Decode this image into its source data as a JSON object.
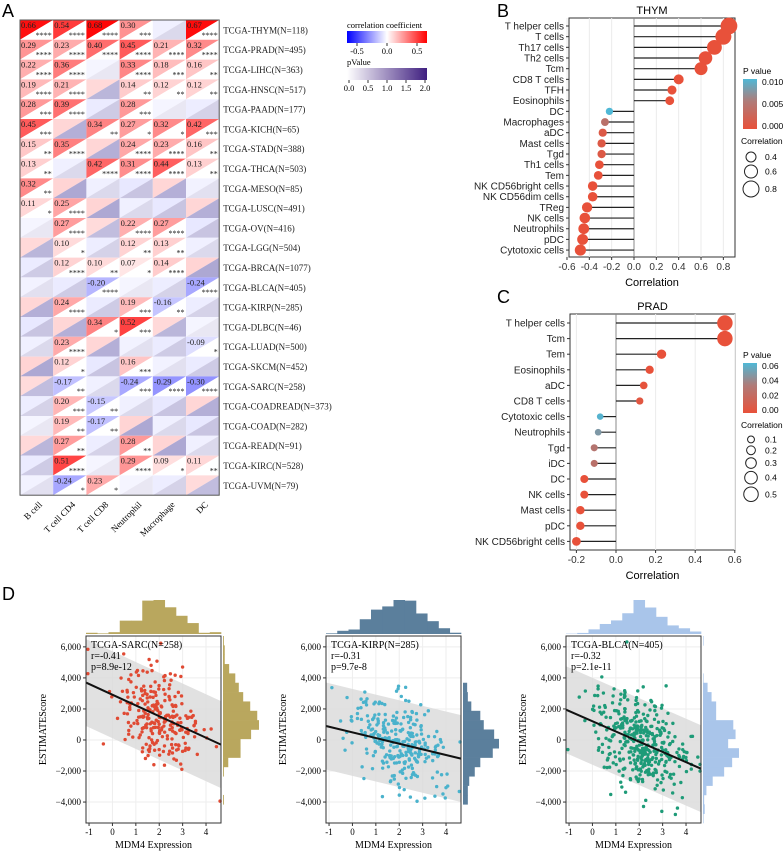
{
  "panels": {
    "a": "A",
    "b": "B",
    "c": "C",
    "d": "D"
  },
  "chart_data": [
    {
      "type": "heatmap",
      "columns": [
        "B cell",
        "T cell CD4",
        "T cell CD8",
        "Neutrophil",
        "Macrophage",
        "DC"
      ],
      "legend": {
        "corr_title": "correlation coefficient",
        "corr_ticks": [
          "-0.5",
          "0.0",
          "0.5"
        ],
        "p_title": "pValue",
        "p_ticks": [
          "0.0",
          "0.5",
          "1.0",
          "1.5",
          "2.0"
        ],
        "corr_low": "#0000ff",
        "corr_high": "#ff0000",
        "p_color": "#3f1f80"
      },
      "rows": [
        {
          "label": "TCGA-THYM(N=118)",
          "r": [
            0.66,
            0.54,
            0.68,
            0.3,
            null,
            0.67
          ],
          "sig": [
            "****",
            "****",
            "****",
            "***",
            "",
            "****"
          ]
        },
        {
          "label": "TCGA-PRAD(N=495)",
          "r": [
            0.29,
            0.23,
            0.4,
            0.45,
            0.21,
            0.32
          ],
          "sig": [
            "****",
            "****",
            "****",
            "****",
            "****",
            "****"
          ]
        },
        {
          "label": "TCGA-LIHC(N=363)",
          "r": [
            0.22,
            0.36,
            null,
            0.33,
            0.18,
            0.16
          ],
          "sig": [
            "****",
            "****",
            "",
            "****",
            "***",
            "**"
          ]
        },
        {
          "label": "TCGA-HNSC(N=517)",
          "r": [
            0.19,
            0.21,
            null,
            0.14,
            0.12,
            0.12
          ],
          "sig": [
            "****",
            "****",
            "",
            "**",
            "**",
            "**"
          ]
        },
        {
          "label": "TCGA-PAAD(N=177)",
          "r": [
            0.28,
            0.39,
            null,
            0.28,
            null,
            null
          ],
          "sig": [
            "***",
            "****",
            "",
            "***",
            "",
            ""
          ]
        },
        {
          "label": "TCGA-KICH(N=65)",
          "r": [
            0.45,
            null,
            0.34,
            0.27,
            0.32,
            0.42
          ],
          "sig": [
            "***",
            "",
            "**",
            "*",
            "*",
            "***"
          ]
        },
        {
          "label": "TCGA-STAD(N=388)",
          "r": [
            0.15,
            0.35,
            null,
            0.24,
            0.23,
            0.16
          ],
          "sig": [
            "**",
            "****",
            "",
            "****",
            "****",
            "**"
          ]
        },
        {
          "label": "TCGA-THCA(N=503)",
          "r": [
            0.13,
            null,
            0.42,
            0.31,
            0.44,
            0.13
          ],
          "sig": [
            "**",
            "",
            "****",
            "****",
            "****",
            "**"
          ]
        },
        {
          "label": "TCGA-MESO(N=85)",
          "r": [
            0.32,
            null,
            null,
            null,
            null,
            null
          ],
          "sig": [
            "**",
            "",
            "",
            "",
            "",
            ""
          ]
        },
        {
          "label": "TCGA-LUSC(N=491)",
          "r": [
            0.11,
            0.25,
            null,
            null,
            null,
            null
          ],
          "sig": [
            "*",
            "****",
            "",
            "",
            "",
            ""
          ]
        },
        {
          "label": "TCGA-OV(N=416)",
          "r": [
            null,
            0.27,
            null,
            0.22,
            0.27,
            null
          ],
          "sig": [
            "",
            "****",
            "",
            "****",
            "****",
            ""
          ]
        },
        {
          "label": "TCGA-LGG(N=504)",
          "r": [
            null,
            0.1,
            null,
            0.12,
            0.13,
            null
          ],
          "sig": [
            "",
            "*",
            "",
            "**",
            "**",
            ""
          ]
        },
        {
          "label": "TCGA-BRCA(N=1077)",
          "r": [
            null,
            0.12,
            0.1,
            0.07,
            0.14,
            null
          ],
          "sig": [
            "",
            "****",
            "**",
            "*",
            "****",
            ""
          ]
        },
        {
          "label": "TCGA-BLCA(N=405)",
          "r": [
            null,
            null,
            -0.2,
            null,
            null,
            -0.24
          ],
          "sig": [
            "",
            "",
            "****",
            "",
            "",
            "****"
          ]
        },
        {
          "label": "TCGA-KIRP(N=285)",
          "r": [
            null,
            0.24,
            null,
            0.19,
            -0.16,
            null
          ],
          "sig": [
            "",
            "****",
            "",
            "***",
            "**",
            ""
          ]
        },
        {
          "label": "TCGA-DLBC(N=46)",
          "r": [
            null,
            null,
            0.34,
            0.52,
            null,
            null
          ],
          "sig": [
            "",
            "",
            "*",
            "***",
            "",
            ""
          ]
        },
        {
          "label": "TCGA-LUAD(N=500)",
          "r": [
            null,
            0.23,
            null,
            null,
            null,
            -0.09
          ],
          "sig": [
            "",
            "****",
            "",
            "",
            "",
            "*"
          ]
        },
        {
          "label": "TCGA-SKCM(N=452)",
          "r": [
            null,
            0.12,
            null,
            0.16,
            null,
            null
          ],
          "sig": [
            "",
            "*",
            "",
            "***",
            "",
            ""
          ]
        },
        {
          "label": "TCGA-SARC(N=258)",
          "r": [
            null,
            -0.17,
            null,
            -0.24,
            -0.29,
            -0.3
          ],
          "sig": [
            "",
            "**",
            "",
            "***",
            "****",
            "****"
          ]
        },
        {
          "label": "TCGA-COADREAD(N=373)",
          "r": [
            null,
            0.2,
            -0.15,
            null,
            null,
            null
          ],
          "sig": [
            "",
            "***",
            "**",
            "",
            "",
            ""
          ]
        },
        {
          "label": "TCGA-COAD(N=282)",
          "r": [
            null,
            0.19,
            -0.17,
            null,
            null,
            null
          ],
          "sig": [
            "",
            "**",
            "**",
            "",
            "",
            ""
          ]
        },
        {
          "label": "TCGA-READ(N=91)",
          "r": [
            null,
            0.27,
            null,
            0.28,
            null,
            null
          ],
          "sig": [
            "",
            "**",
            "",
            "**",
            "",
            ""
          ]
        },
        {
          "label": "TCGA-KIRC(N=528)",
          "r": [
            null,
            0.51,
            null,
            0.29,
            0.09,
            0.11
          ],
          "sig": [
            "",
            "****",
            "",
            "****",
            "*",
            "**"
          ]
        },
        {
          "label": "TCGA-UVM(N=79)",
          "r": [
            null,
            -0.24,
            0.23,
            null,
            null,
            null
          ],
          "sig": [
            "",
            "*",
            "*",
            "",
            "",
            ""
          ]
        }
      ]
    },
    {
      "type": "lollipop",
      "title": "THYM",
      "xlabel": "Correlation",
      "xlim": [
        -0.6,
        0.9
      ],
      "xticks": [
        "-0.6",
        "-0.4",
        "-0.2",
        "0.0",
        "0.2",
        "0.4",
        "0.6",
        "0.8"
      ],
      "p_legend_title": "P value",
      "p_ticks": [
        "0.010",
        "0.005",
        "0.000"
      ],
      "p_max": 0.013,
      "size_legend_title": "Correlation",
      "size_ticks": [
        "0.4",
        "0.6",
        "0.8"
      ],
      "low_color": "#e8513a",
      "high_color": "#4fb8d6",
      "items": [
        {
          "label": "T helper cells",
          "r": 0.85,
          "p": 0
        },
        {
          "label": "T cells",
          "r": 0.8,
          "p": 0
        },
        {
          "label": "Th17 cells",
          "r": 0.72,
          "p": 0
        },
        {
          "label": "Th2 cells",
          "r": 0.64,
          "p": 0
        },
        {
          "label": "Tcm",
          "r": 0.6,
          "p": 0
        },
        {
          "label": "CD8 T cells",
          "r": 0.4,
          "p": 0
        },
        {
          "label": "TFH",
          "r": 0.34,
          "p": 0
        },
        {
          "label": "Eosinophils",
          "r": 0.32,
          "p": 0
        },
        {
          "label": "DC",
          "r": -0.22,
          "p": 0.013
        },
        {
          "label": "Macrophages",
          "r": -0.26,
          "p": 0.004
        },
        {
          "label": "aDC",
          "r": -0.28,
          "p": 0.001
        },
        {
          "label": "Mast cells",
          "r": -0.29,
          "p": 0.001
        },
        {
          "label": "Tgd",
          "r": -0.29,
          "p": 0.001
        },
        {
          "label": "Th1 cells",
          "r": -0.31,
          "p": 0
        },
        {
          "label": "Tem",
          "r": -0.32,
          "p": 0
        },
        {
          "label": "NK CD56bright cells",
          "r": -0.37,
          "p": 0
        },
        {
          "label": "NK CD56dim cells",
          "r": -0.37,
          "p": 0
        },
        {
          "label": "TReg",
          "r": -0.42,
          "p": 0
        },
        {
          "label": "NK cells",
          "r": -0.44,
          "p": 0
        },
        {
          "label": "Neutrophils",
          "r": -0.45,
          "p": 0
        },
        {
          "label": "pDC",
          "r": -0.46,
          "p": 0
        },
        {
          "label": "Cytotoxic cells",
          "r": -0.48,
          "p": 0
        }
      ]
    },
    {
      "type": "lollipop",
      "title": "PRAD",
      "xlabel": "Correlation",
      "xlim": [
        -0.23,
        0.6
      ],
      "xticks": [
        "-0.2",
        "0.0",
        "0.2",
        "0.4",
        "0.6"
      ],
      "p_legend_title": "P value",
      "p_ticks": [
        "0.06",
        "0.04",
        "0.02",
        "0.00"
      ],
      "p_max": 0.065,
      "size_legend_title": "Correlation",
      "size_ticks": [
        "0.1",
        "0.2",
        "0.3",
        "0.4",
        "0.5"
      ],
      "low_color": "#e8513a",
      "high_color": "#4fb8d6",
      "items": [
        {
          "label": "T helper cells",
          "r": 0.55,
          "p": 0
        },
        {
          "label": "Tcm",
          "r": 0.55,
          "p": 0
        },
        {
          "label": "Tem",
          "r": 0.23,
          "p": 0
        },
        {
          "label": "Eosinophils",
          "r": 0.17,
          "p": 0
        },
        {
          "label": "aDC",
          "r": 0.14,
          "p": 0.001
        },
        {
          "label": "CD8 T cells",
          "r": 0.12,
          "p": 0.003
        },
        {
          "label": "Cytotoxic cells",
          "r": -0.08,
          "p": 0.062
        },
        {
          "label": "Neutrophils",
          "r": -0.09,
          "p": 0.045
        },
        {
          "label": "Tgd",
          "r": -0.11,
          "p": 0.022
        },
        {
          "label": "iDC",
          "r": -0.11,
          "p": 0.02
        },
        {
          "label": "DC",
          "r": -0.16,
          "p": 0
        },
        {
          "label": "NK cells",
          "r": -0.16,
          "p": 0
        },
        {
          "label": "Mast cells",
          "r": -0.18,
          "p": 0
        },
        {
          "label": "pDC",
          "r": -0.18,
          "p": 0
        },
        {
          "label": "NK CD56bright cells",
          "r": -0.2,
          "p": 0
        }
      ]
    },
    {
      "type": "scatter",
      "xlabel": "MDM4 Expression",
      "ylabel": "ESTIMATEScore",
      "xlim": [
        -1.13,
        4.64
      ],
      "ylim": [
        -5350,
        6700
      ],
      "xticks": [
        "-1",
        "0",
        "1",
        "2",
        "3",
        "4"
      ],
      "yticks": [
        "6,000",
        "4,000",
        "2,000",
        "0",
        "−2,000",
        "−4,000"
      ],
      "plots": [
        {
          "label": "TCGA-SARC(N=258)",
          "n": 258,
          "r_text": "r=-0.41",
          "p_text": "p=8.9e-12",
          "r": -0.41,
          "line": [
            [
              -1.13,
              3700
            ],
            [
              4.64,
              -300
            ]
          ],
          "point_color": "#e04a33",
          "hist_color": "#b9a75e"
        },
        {
          "label": "TCGA-KIRP(N=285)",
          "n": 285,
          "r_text": "r=-0.31",
          "p_text": "p=9.7e-8",
          "r": -0.31,
          "line": [
            [
              -1.13,
              900
            ],
            [
              4.64,
              -1200
            ]
          ],
          "point_color": "#4ab2cc",
          "hist_color": "#5b7f9c"
        },
        {
          "label": "TCGA-BLCA(N=405)",
          "n": 405,
          "r_text": "r=-0.32",
          "p_text": "p=2.1e-11",
          "r": -0.32,
          "line": [
            [
              -1.13,
              1950
            ],
            [
              4.64,
              -1850
            ]
          ],
          "point_color": "#1e9b78",
          "hist_color": "#a9c5ea"
        }
      ]
    }
  ]
}
